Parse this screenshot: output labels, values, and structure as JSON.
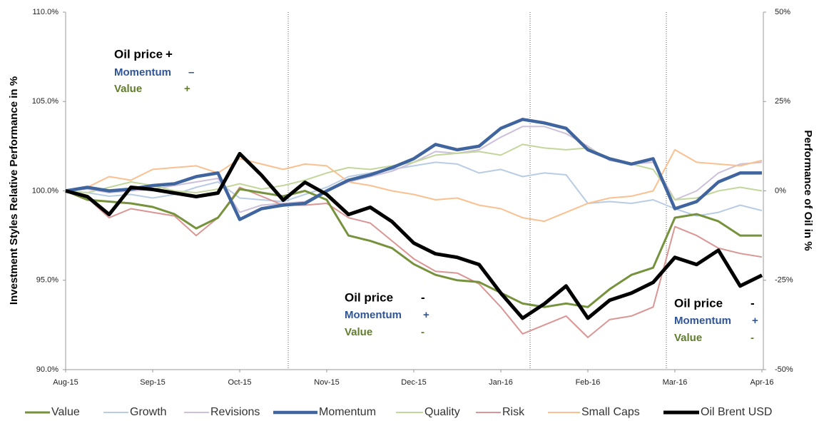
{
  "chart_data": {
    "type": "line",
    "y_label": "Investment Styles Relative Performance in %",
    "y2_label": "Performance of Oil in %",
    "categories": [
      "Aug-15",
      null,
      null,
      null,
      "Sep-15",
      null,
      null,
      null,
      "Oct-15",
      null,
      null,
      null,
      "Nov-15",
      null,
      null,
      null,
      "Dec-15",
      null,
      null,
      null,
      "Jan-16",
      null,
      null,
      null,
      "Feb-16",
      null,
      null,
      null,
      "Mar-16",
      null,
      null,
      null,
      "Apr-16"
    ],
    "ylim": [
      90,
      110
    ],
    "yticks": [
      {
        "value": 90,
        "label": "90.0%"
      },
      {
        "value": 95,
        "label": "95.0%"
      },
      {
        "value": 100,
        "label": "100.0%"
      },
      {
        "value": 105,
        "label": "105.0%"
      },
      {
        "value": 110,
        "label": "110.0%"
      }
    ],
    "y2lim": [
      -50,
      50
    ],
    "y2ticks": [
      {
        "value": -50,
        "label": "-50%"
      },
      {
        "value": -25,
        "label": "-25%"
      },
      {
        "value": 0,
        "label": "0%"
      },
      {
        "value": 25,
        "label": "25%"
      },
      {
        "value": 50,
        "label": "50%"
      }
    ],
    "grid": false,
    "series": [
      {
        "name": "Value",
        "color": "#76923c",
        "line_width": 3,
        "values": [
          100,
          99.5,
          99.4,
          99.3,
          99.1,
          98.7,
          97.9,
          98.5,
          100.1,
          99.9,
          99.7,
          100,
          99.5,
          97.5,
          97.2,
          96.8,
          95.9,
          95.3,
          95.0,
          94.9,
          94.3,
          93.7,
          93.5,
          93.7,
          93.5,
          94.5,
          95.3,
          95.7,
          98.5,
          98.7,
          98.3,
          97.5,
          97.5
        ]
      },
      {
        "name": "Growth",
        "color": "#b8cce4",
        "line_width": 2,
        "values": [
          100,
          99.9,
          99.7,
          99.8,
          99.6,
          99.8,
          100.2,
          100.5,
          99.6,
          99.5,
          99.4,
          99.8,
          100.2,
          100.8,
          101.0,
          101.2,
          101.4,
          101.6,
          101.5,
          101.0,
          101.2,
          100.8,
          101.0,
          100.9,
          99.3,
          99.4,
          99.3,
          99.5,
          99.0,
          98.6,
          98.8,
          99.2,
          98.9
        ]
      },
      {
        "name": "Revisions",
        "color": "#ccc0da",
        "line_width": 2,
        "values": [
          100,
          100.1,
          99.9,
          100,
          100.1,
          100.3,
          100.5,
          100.7,
          98.8,
          99.2,
          99.3,
          99.4,
          100.0,
          100.5,
          100.8,
          101.1,
          101.6,
          102.2,
          102.1,
          102.3,
          103.0,
          103.6,
          103.6,
          103.2,
          102.5,
          101.7,
          101.5,
          101.6,
          99.5,
          100.0,
          101.0,
          101.5,
          101.6
        ]
      },
      {
        "name": "Momentum",
        "color": "#3f649e",
        "line_width": 4.5,
        "values": [
          100,
          100.2,
          100.0,
          100.1,
          100.3,
          100.4,
          100.8,
          101.0,
          98.4,
          99.0,
          99.2,
          99.3,
          100.0,
          100.6,
          100.9,
          101.3,
          101.8,
          102.6,
          102.3,
          102.5,
          103.5,
          104.0,
          103.8,
          103.5,
          102.3,
          101.8,
          101.5,
          101.8,
          99.0,
          99.4,
          100.5,
          101.0,
          101.0
        ]
      },
      {
        "name": "Quality",
        "color": "#c3d69b",
        "line_width": 2,
        "values": [
          100,
          99.9,
          100.2,
          100.5,
          100.3,
          100.0,
          99.9,
          100.1,
          100.4,
          100.1,
          100.3,
          100.6,
          101.0,
          101.3,
          101.2,
          101.4,
          101.6,
          102.0,
          102.1,
          102.2,
          102.0,
          102.6,
          102.4,
          102.3,
          102.4,
          101.8,
          101.5,
          101.2,
          99.5,
          99.6,
          100.0,
          100.2,
          100.0
        ]
      },
      {
        "name": "Risk",
        "color": "#d99694",
        "line_width": 2,
        "values": [
          100,
          99.6,
          98.5,
          99.0,
          98.8,
          98.6,
          97.5,
          98.5,
          100.2,
          99.7,
          99.2,
          99.2,
          99.3,
          98.5,
          98.2,
          97.2,
          96.2,
          95.5,
          95.4,
          94.8,
          93.5,
          92.0,
          92.5,
          93.0,
          91.8,
          92.8,
          93.0,
          93.5,
          98.0,
          97.5,
          96.8,
          96.5,
          96.3
        ]
      },
      {
        "name": "Small Caps",
        "color": "#fac090",
        "line_width": 2,
        "values": [
          100,
          100.2,
          100.8,
          100.6,
          101.2,
          101.3,
          101.4,
          101.0,
          101.8,
          101.5,
          101.2,
          101.5,
          101.4,
          100.5,
          100.3,
          100.0,
          99.8,
          99.5,
          99.6,
          99.2,
          99.0,
          98.5,
          98.3,
          98.8,
          99.3,
          99.6,
          99.7,
          100.0,
          102.3,
          101.6,
          101.5,
          101.4,
          101.7
        ]
      },
      {
        "name": "Oil Brent USD",
        "color": "#000000",
        "line_width": 5,
        "axis": "y2",
        "values": [
          0,
          -1.6,
          -6.6,
          1,
          0.4,
          -0.6,
          -1.6,
          -0.6,
          10.4,
          4.4,
          -2.6,
          2.4,
          -1,
          -6.6,
          -4.6,
          -8.6,
          -14.6,
          -17.6,
          -18.6,
          -20.6,
          -28.6,
          -35.6,
          -31.6,
          -26.6,
          -35.6,
          -30.6,
          -28.6,
          -25.6,
          -18.6,
          -20.6,
          -16.6,
          -26.6,
          -23.6
        ]
      }
    ],
    "annotations": [
      [
        {
          "label": "Oil price",
          "sign": "+",
          "color": "#000000"
        },
        {
          "label": "Momentum",
          "sign": "–",
          "color": "#2f5597"
        },
        {
          "label": "Value",
          "sign": "+",
          "color": "#5f7d2c"
        }
      ],
      [
        {
          "label": "Oil price",
          "sign": "-",
          "color": "#000000"
        },
        {
          "label": "Momentum",
          "sign": "+",
          "color": "#2f5597"
        },
        {
          "label": "Value",
          "sign": "-",
          "color": "#5f7d2c"
        }
      ],
      [
        {
          "label": "Oil price",
          "sign": "-",
          "color": "#000000"
        },
        {
          "label": "Momentum",
          "sign": "+",
          "color": "#2f5597"
        },
        {
          "label": "Value",
          "sign": "-",
          "color": "#5f7d2c"
        }
      ]
    ]
  }
}
